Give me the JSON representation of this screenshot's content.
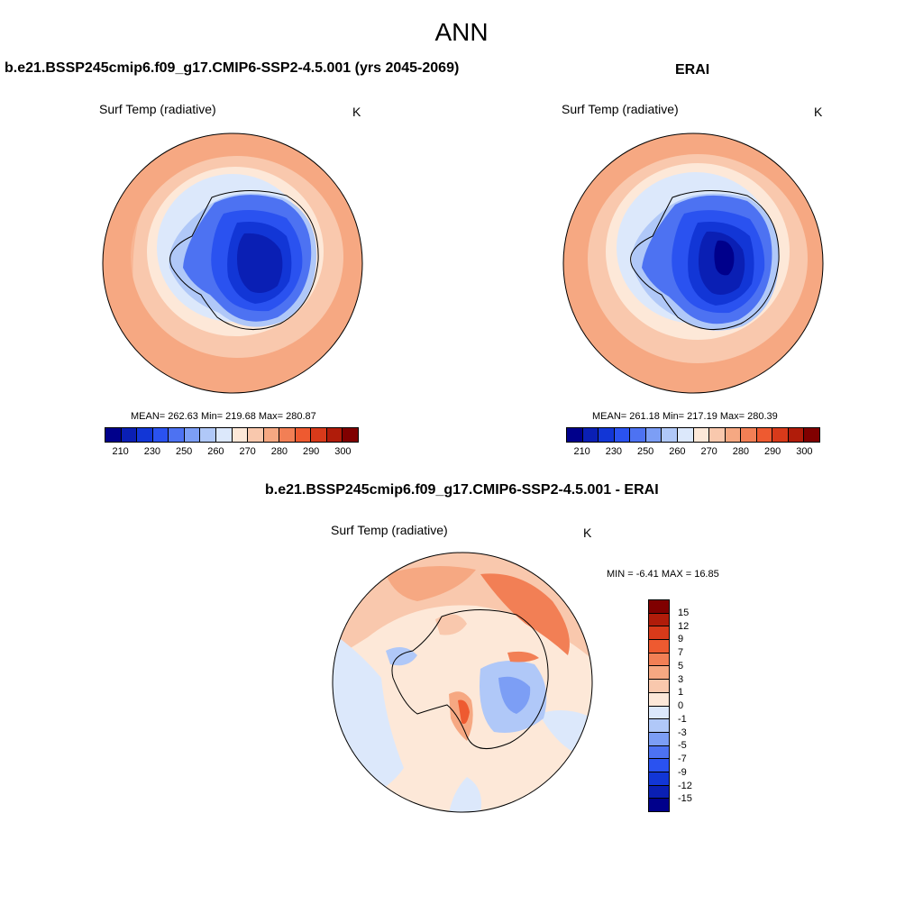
{
  "title": "ANN",
  "panels": {
    "model": {
      "title": "b.e21.BSSP245cmip6.f09_g17.CMIP6-SSP2-4.5.001 (yrs 2045-2069)",
      "var_label": "Surf Temp (radiative)",
      "units": "K",
      "stats": "MEAN= 262.63   Min= 219.68   Max= 280.87"
    },
    "obs": {
      "title": "ERAI",
      "var_label": "Surf Temp (radiative)",
      "units": "K",
      "stats": "MEAN= 261.18   Min= 217.19   Max= 280.39"
    },
    "diff": {
      "title": "b.e21.BSSP245cmip6.f09_g17.CMIP6-SSP2-4.5.001 - ERAI",
      "var_label": "Surf Temp (radiative)",
      "units": "K",
      "stats": "MIN =  -6.41 MAX =  16.85"
    }
  },
  "colorbar_abs": {
    "labels": [
      "210",
      "230",
      "250",
      "260",
      "270",
      "280",
      "290",
      "300"
    ],
    "colors": [
      "#00008b",
      "#0a1fb4",
      "#1236d6",
      "#2a52f0",
      "#4d72f2",
      "#7c9ef5",
      "#b0c8f8",
      "#dce8fb",
      "#fde8d8",
      "#f9c8ad",
      "#f6a882",
      "#f27f55",
      "#ee5a30",
      "#d83a1a",
      "#b01c0a",
      "#800000"
    ]
  },
  "colorbar_diff": {
    "labels": [
      "15",
      "12",
      "9",
      "7",
      "5",
      "3",
      "1",
      "0",
      "-1",
      "-3",
      "-5",
      "-7",
      "-9",
      "-12",
      "-15"
    ],
    "colors": [
      "#800000",
      "#b01c0a",
      "#d83a1a",
      "#ee5a30",
      "#f27f55",
      "#f6a882",
      "#f9c8ad",
      "#fde8d8",
      "#dce8fb",
      "#b0c8f8",
      "#7c9ef5",
      "#4d72f2",
      "#2a52f0",
      "#1236d6",
      "#0a1fb4",
      "#00008b"
    ]
  }
}
